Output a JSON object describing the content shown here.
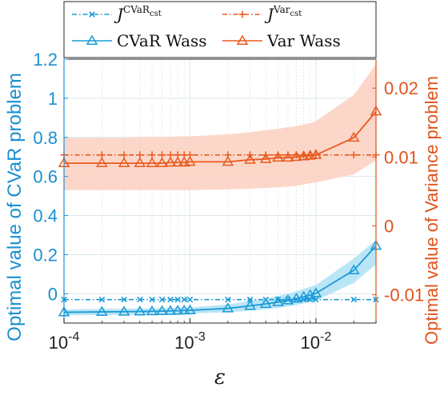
{
  "chart_data": {
    "type": "line",
    "xscale": "log",
    "xlim": [
      0.0001,
      0.03
    ],
    "x_ticks": [
      0.0001,
      0.001,
      0.01
    ],
    "x_tick_labels": [
      {
        "base": "10",
        "exp": "-4"
      },
      {
        "base": "10",
        "exp": "-3"
      },
      {
        "base": "10",
        "exp": "-2"
      }
    ],
    "xlabel": "ε",
    "ylabel_left": "Optimal value of CVaR problem",
    "ylabel_right": "Optimal value of Variance problem",
    "ylim_left": [
      -0.15,
      1.2
    ],
    "yticks_left": [
      0,
      0.2,
      0.4,
      0.6,
      0.8,
      1,
      1.2
    ],
    "ytick_labels_left": [
      "0",
      "0.2",
      "0.4",
      "0.6",
      "0.8",
      "1",
      "1.2"
    ],
    "ylim_right": [
      -0.0141,
      0.0242
    ],
    "yticks_right": [
      -0.01,
      0,
      0.01,
      0.02
    ],
    "ytick_labels_right": [
      "-0.01",
      "0",
      "0.01",
      "0.02"
    ],
    "grid": true,
    "legend_position": "top",
    "x": [
      0.0001,
      0.0002,
      0.0003,
      0.0004,
      0.0005,
      0.0006,
      0.0007,
      0.0008,
      0.0009,
      0.001,
      0.002,
      0.003,
      0.004,
      0.005,
      0.006,
      0.007,
      0.008,
      0.009,
      0.01,
      0.02,
      0.03
    ],
    "series": [
      {
        "name_main": "J",
        "name_sup": "CVaR",
        "name_sub": "cst",
        "axis": "left",
        "color": "#1a9ad6",
        "style": "dash-dot",
        "marker": "x",
        "values": [
          -0.03,
          -0.03,
          -0.03,
          -0.03,
          -0.03,
          -0.03,
          -0.03,
          -0.03,
          -0.03,
          -0.03,
          -0.03,
          -0.03,
          -0.03,
          -0.03,
          -0.03,
          -0.03,
          -0.03,
          -0.03,
          -0.03,
          -0.03,
          -0.03
        ]
      },
      {
        "name_main": "J",
        "name_sup": "Var",
        "name_sub": "cst",
        "axis": "right",
        "color": "#e85a1e",
        "style": "dash-dot",
        "marker": "+",
        "values": [
          0.0103,
          0.0103,
          0.0103,
          0.0103,
          0.0103,
          0.0103,
          0.0103,
          0.0103,
          0.0103,
          0.0103,
          0.0103,
          0.0103,
          0.0103,
          0.0103,
          0.0103,
          0.0103,
          0.0103,
          0.0103,
          0.0103,
          0.0103,
          0.0103
        ]
      },
      {
        "name": "CVaR Wass",
        "axis": "left",
        "color": "#1a9ad6",
        "band_color": "#aee0f5",
        "style": "solid",
        "marker": "triangle",
        "values": [
          -0.095,
          -0.093,
          -0.092,
          -0.091,
          -0.09,
          -0.089,
          -0.088,
          -0.087,
          -0.086,
          -0.085,
          -0.075,
          -0.062,
          -0.052,
          -0.043,
          -0.034,
          -0.025,
          -0.016,
          -0.007,
          0.002,
          0.12,
          0.245
        ],
        "band_lower": [
          -0.11,
          -0.109,
          -0.108,
          -0.107,
          -0.106,
          -0.105,
          -0.104,
          -0.103,
          -0.102,
          -0.101,
          -0.095,
          -0.087,
          -0.08,
          -0.073,
          -0.066,
          -0.058,
          -0.05,
          -0.042,
          -0.035,
          0.055,
          0.15
        ],
        "band_upper": [
          -0.08,
          -0.078,
          -0.077,
          -0.076,
          -0.075,
          -0.074,
          -0.073,
          -0.072,
          -0.071,
          -0.07,
          -0.055,
          -0.037,
          -0.024,
          -0.011,
          0.0,
          0.012,
          0.025,
          0.035,
          0.045,
          0.18,
          0.275
        ]
      },
      {
        "name": "Var Wass",
        "axis": "right",
        "color": "#e85a1e",
        "band_color": "#fbd0bf",
        "style": "solid",
        "marker": "triangle",
        "values": [
          0.0091,
          0.0091,
          0.0091,
          0.0091,
          0.0091,
          0.0091,
          0.0092,
          0.0092,
          0.0092,
          0.0093,
          0.0093,
          0.0096,
          0.0097,
          0.0099,
          0.0099,
          0.01,
          0.0101,
          0.0102,
          0.0103,
          0.0128,
          0.0166
        ],
        "band_lower": [
          0.0052,
          0.0052,
          0.0052,
          0.0052,
          0.0052,
          0.0052,
          0.0052,
          0.0052,
          0.0052,
          0.0052,
          0.0053,
          0.0054,
          0.0055,
          0.0056,
          0.0057,
          0.0058,
          0.006,
          0.0062,
          0.0063,
          0.0075,
          0.0095
        ],
        "band_upper": [
          0.0128,
          0.0128,
          0.0128,
          0.0129,
          0.0129,
          0.0129,
          0.0129,
          0.013,
          0.013,
          0.013,
          0.0133,
          0.0136,
          0.0139,
          0.0141,
          0.0143,
          0.0145,
          0.0147,
          0.0149,
          0.0152,
          0.019,
          0.0235
        ]
      }
    ]
  }
}
